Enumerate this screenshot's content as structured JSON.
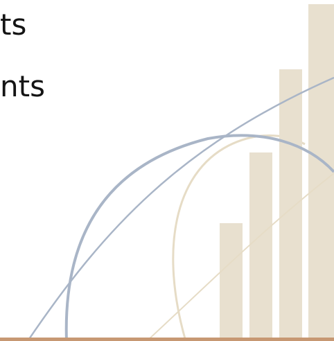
{
  "slide": {
    "text_lines": [
      "ts",
      "nts"
    ],
    "colors": {
      "bar": "#e8e0cf",
      "blue_curve": "#a9b5c7",
      "tan_curve": "#e6dcc6",
      "baseline": "#c79873"
    },
    "decoration_icon": "bar-chart-arcs-graphic"
  }
}
